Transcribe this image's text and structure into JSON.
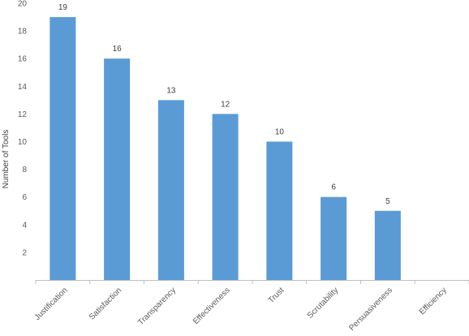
{
  "chart_data": {
    "type": "bar",
    "title": "",
    "xlabel": "",
    "ylabel": "Number of Tools",
    "ylim": [
      0,
      20
    ],
    "yticks": [
      2,
      4,
      6,
      8,
      10,
      12,
      14,
      16,
      18,
      20
    ],
    "grid": false,
    "legend": "none",
    "bar_color": "#5b9bd5",
    "categories": [
      "Justification",
      "Satisfaction",
      "Transparency",
      "Effectiveness",
      "Trust",
      "Scrutability",
      "Persuasiveness",
      "Efficiency"
    ],
    "values": [
      19,
      16,
      13,
      12,
      10,
      6,
      5,
      null
    ],
    "data_labels": [
      "19",
      "16",
      "13",
      "12",
      "10",
      "6",
      "5",
      ""
    ]
  }
}
